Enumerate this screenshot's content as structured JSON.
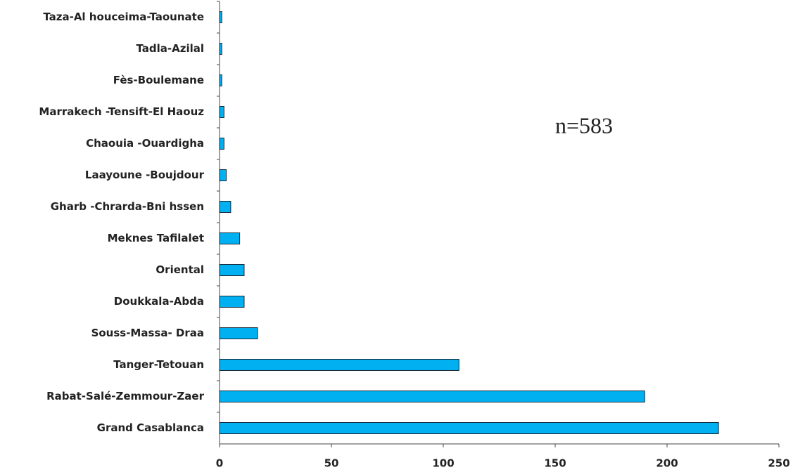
{
  "chart_data": {
    "type": "barh",
    "categories": [
      "Taza-Al houceima-Taounate",
      "Tadla-Azilal",
      "Fès-Boulemane",
      "Marrakech -Tensift-El Haouz",
      "Chaouia -Ouardigha",
      "Laayoune -Boujdour",
      "Gharb -Chrarda-Bni hssen",
      "Meknes Tafilalet",
      "Oriental",
      "Doukkala-Abda",
      "Souss-Massa- Draa",
      "Tanger-Tetouan",
      "Rabat-Salé-Zemmour-Zaer",
      "Grand Casablanca"
    ],
    "values": [
      1,
      1,
      1,
      2,
      2,
      3,
      5,
      9,
      11,
      11,
      17,
      107,
      190,
      223
    ],
    "color": "#00b0f0",
    "xlim": [
      0,
      250
    ],
    "xticks": [
      0,
      50,
      100,
      150,
      200,
      250
    ],
    "grid": false,
    "annotations": [
      "n=583"
    ]
  }
}
